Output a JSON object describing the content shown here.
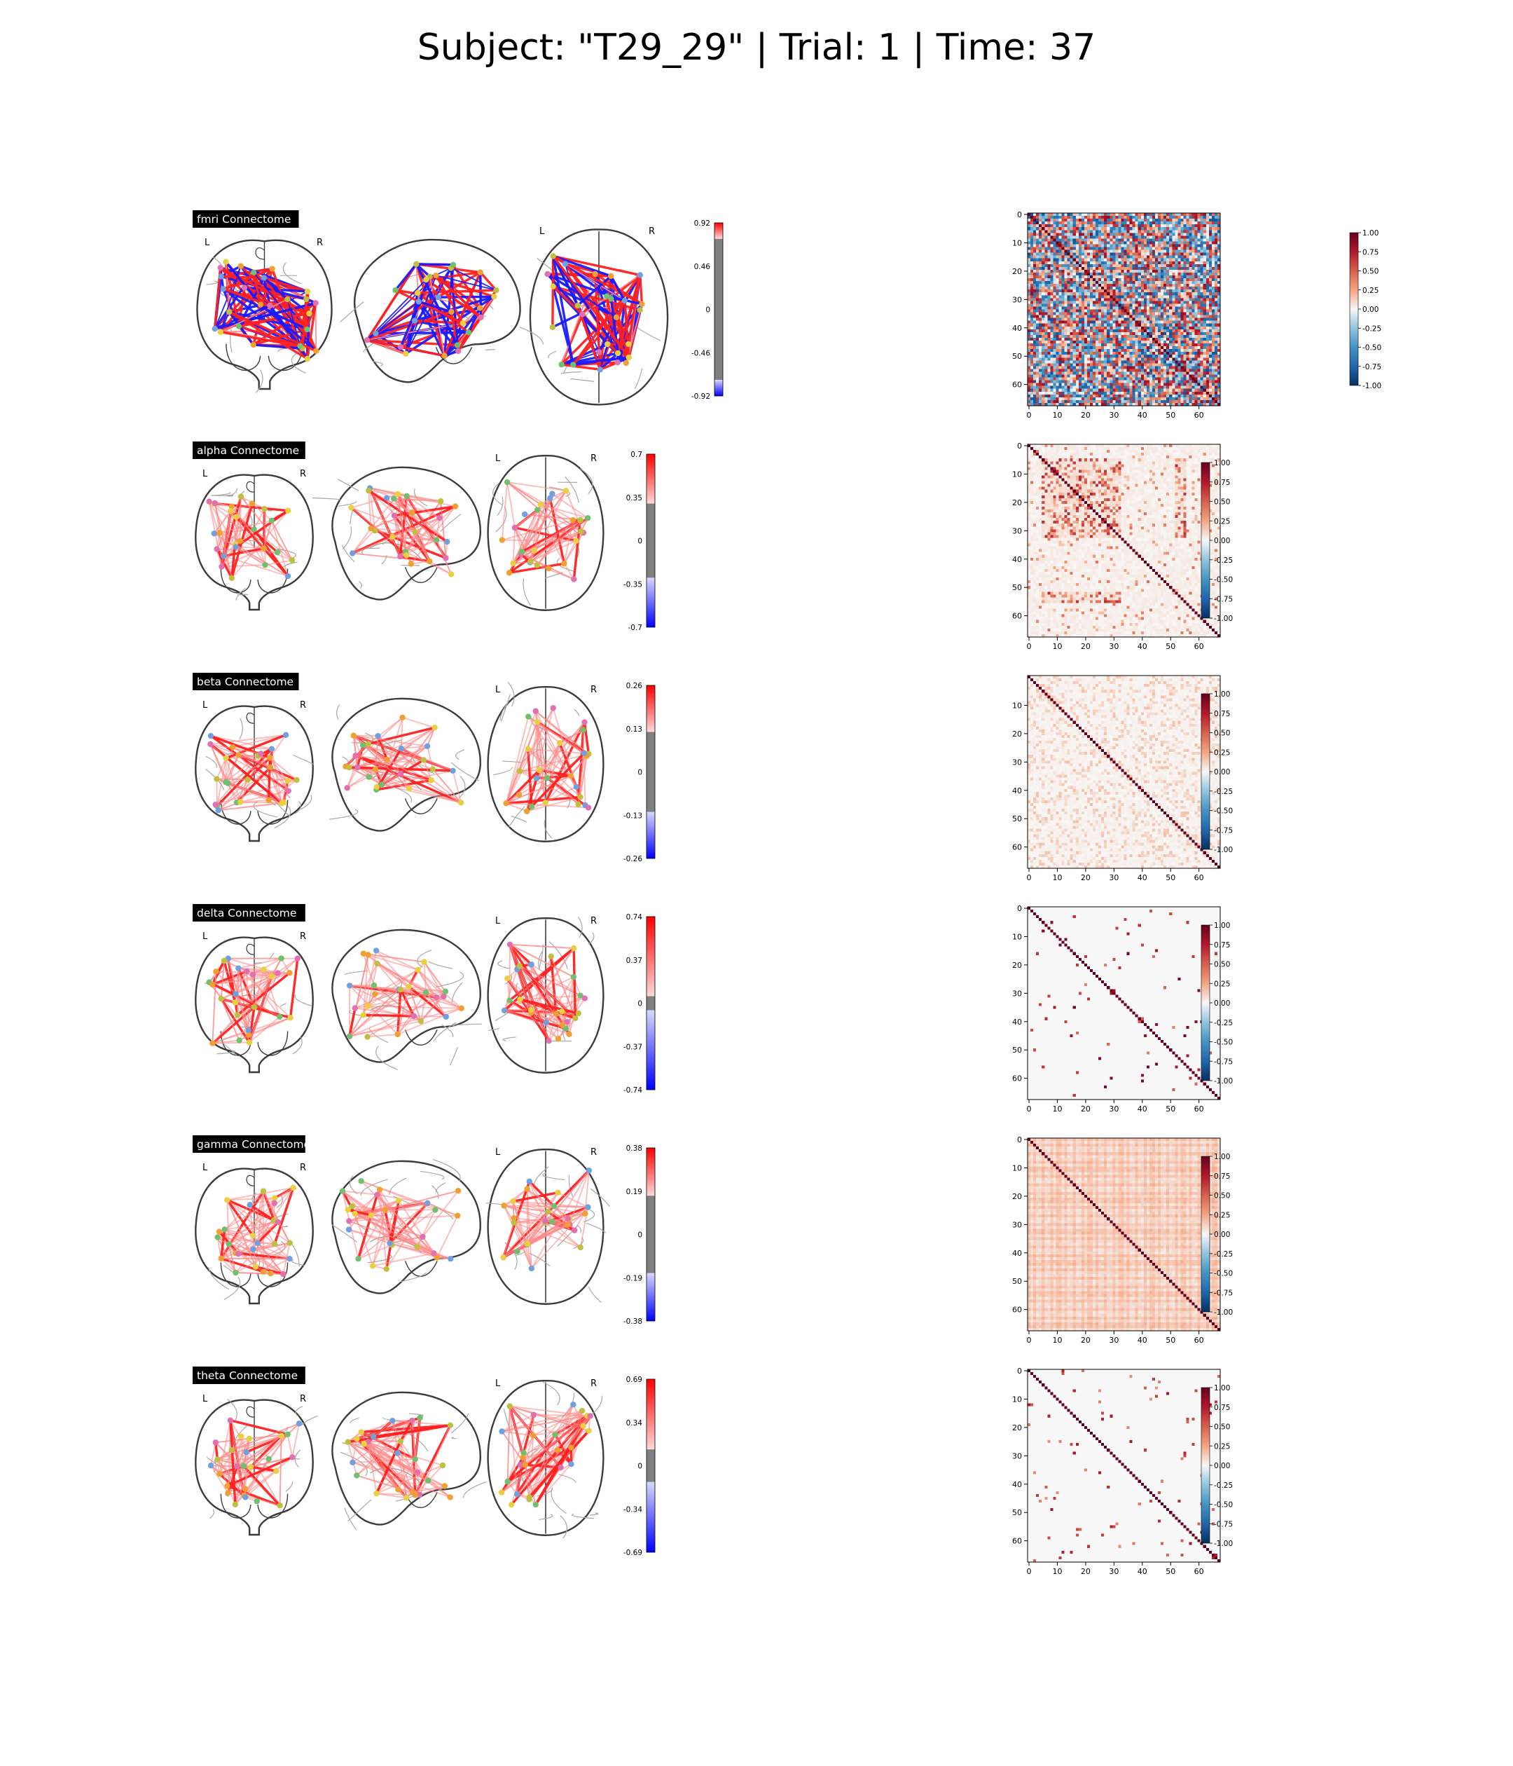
{
  "suptitle": "Subject: \"T29_29\" | Trial: 1 | Time: 37",
  "glass_views": {
    "left_label": "L",
    "right_label": "R"
  },
  "colors": {
    "pos_edge": "#ff2020",
    "neg_edge": "#1a1aff",
    "glass_outline": "#3c3c3c",
    "gray_band": "#808080",
    "label_bg": "#000000",
    "label_fg": "#ffffff",
    "node_colors": [
      "#f0a030",
      "#e8d040",
      "#70c070",
      "#70a0e0",
      "#e070b0",
      "#c0c040"
    ]
  },
  "chart_data": [
    {
      "type": "network",
      "row": 0,
      "title": "fmri Connectome",
      "colorbar_ticks": [
        "0.92",
        "0.46",
        "0",
        "-0.46",
        "-0.92"
      ],
      "vmax": 0.92,
      "threshold": 0.75,
      "has_negative_edges": true
    },
    {
      "type": "heatmap",
      "row": 0,
      "n": 68,
      "pattern": "fmri",
      "x_ticks": [
        "0",
        "10",
        "20",
        "30",
        "40",
        "50",
        "60"
      ],
      "y_ticks": [
        "0",
        "10",
        "20",
        "30",
        "40",
        "50",
        "60"
      ],
      "colorbar_ticks": [
        "1.00",
        "0.75",
        "0.50",
        "0.25",
        "0.00",
        "-0.25",
        "-0.50",
        "-0.75",
        "-1.00"
      ],
      "vmin": -1,
      "vmax": 1,
      "colorbar_position": "outside-right"
    },
    {
      "type": "network",
      "row": 1,
      "title": "alpha Connectome",
      "colorbar_ticks": [
        "0.7",
        "0.35",
        "0",
        "-0.35",
        "-0.7"
      ],
      "vmax": 0.7,
      "threshold": 0.3,
      "has_negative_edges": false
    },
    {
      "type": "heatmap",
      "row": 1,
      "n": 68,
      "pattern": "alpha",
      "x_ticks": [
        "0",
        "10",
        "20",
        "30",
        "40",
        "50",
        "60"
      ],
      "y_ticks": [
        "0",
        "10",
        "20",
        "30",
        "40",
        "50",
        "60"
      ],
      "colorbar_ticks": [
        "1.00",
        "0.75",
        "0.50",
        "0.25",
        "0.00",
        "-0.25",
        "-0.50",
        "-0.75",
        "-1.00"
      ],
      "vmin": -1,
      "vmax": 1,
      "colorbar_position": "inside-right"
    },
    {
      "type": "network",
      "row": 2,
      "title": "beta Connectome",
      "colorbar_ticks": [
        "0.26",
        "0.13",
        "0",
        "-0.13",
        "-0.26"
      ],
      "vmax": 0.26,
      "threshold": 0.12,
      "has_negative_edges": false
    },
    {
      "type": "heatmap",
      "row": 2,
      "n": 68,
      "pattern": "beta",
      "x_ticks": [
        "0",
        "10",
        "20",
        "30",
        "40",
        "50",
        "60"
      ],
      "y_ticks": [
        "10",
        "20",
        "30",
        "40",
        "50",
        "60"
      ],
      "colorbar_ticks": [
        "1.00",
        "0.75",
        "0.50",
        "0.25",
        "0.00",
        "-0.25",
        "-0.50",
        "-0.75",
        "-1.00"
      ],
      "vmin": -1,
      "vmax": 1,
      "colorbar_position": "inside-right"
    },
    {
      "type": "network",
      "row": 3,
      "title": "delta Connectome",
      "colorbar_ticks": [
        "0.74",
        "0.37",
        "0",
        "-0.37",
        "-0.74"
      ],
      "vmax": 0.74,
      "threshold": 0.06,
      "has_negative_edges": false
    },
    {
      "type": "heatmap",
      "row": 3,
      "n": 68,
      "pattern": "delta",
      "x_ticks": [
        "0",
        "10",
        "20",
        "30",
        "40",
        "50",
        "60"
      ],
      "y_ticks": [
        "0",
        "10",
        "20",
        "30",
        "40",
        "50",
        "60"
      ],
      "colorbar_ticks": [
        "1.00",
        "0.75",
        "0.50",
        "0.25",
        "0.00",
        "-0.25",
        "-0.50",
        "-0.75",
        "-1.00"
      ],
      "vmin": -1,
      "vmax": 1,
      "colorbar_position": "inside-right"
    },
    {
      "type": "network",
      "row": 4,
      "title": "gamma Connectome",
      "colorbar_ticks": [
        "0.38",
        "0.19",
        "0",
        "-0.19",
        "-0.38"
      ],
      "vmax": 0.38,
      "threshold": 0.17,
      "has_negative_edges": false
    },
    {
      "type": "heatmap",
      "row": 4,
      "n": 68,
      "pattern": "gamma",
      "x_ticks": [
        "0",
        "10",
        "20",
        "30",
        "40",
        "50",
        "60"
      ],
      "y_ticks": [
        "0",
        "10",
        "20",
        "30",
        "40",
        "50",
        "60"
      ],
      "colorbar_ticks": [
        "1.00",
        "0.75",
        "0.50",
        "0.25",
        "0.00",
        "-0.25",
        "-0.50",
        "-0.75",
        "-1.00"
      ],
      "vmin": -1,
      "vmax": 1,
      "colorbar_position": "inside-right"
    },
    {
      "type": "network",
      "row": 5,
      "title": "theta Connectome",
      "colorbar_ticks": [
        "0.69",
        "0.34",
        "0",
        "-0.34",
        "-0.69"
      ],
      "vmax": 0.69,
      "threshold": 0.13,
      "has_negative_edges": false
    },
    {
      "type": "heatmap",
      "row": 5,
      "n": 68,
      "pattern": "theta",
      "x_ticks": [
        "0",
        "10",
        "20",
        "30",
        "40",
        "50",
        "60"
      ],
      "y_ticks": [
        "0",
        "10",
        "20",
        "30",
        "40",
        "50",
        "60"
      ],
      "colorbar_ticks": [
        "1.00",
        "0.75",
        "0.50",
        "0.25",
        "0.00",
        "-0.25",
        "-0.50",
        "-0.75",
        "-1.00"
      ],
      "vmin": -1,
      "vmax": 1,
      "colorbar_position": "inside-right"
    }
  ]
}
